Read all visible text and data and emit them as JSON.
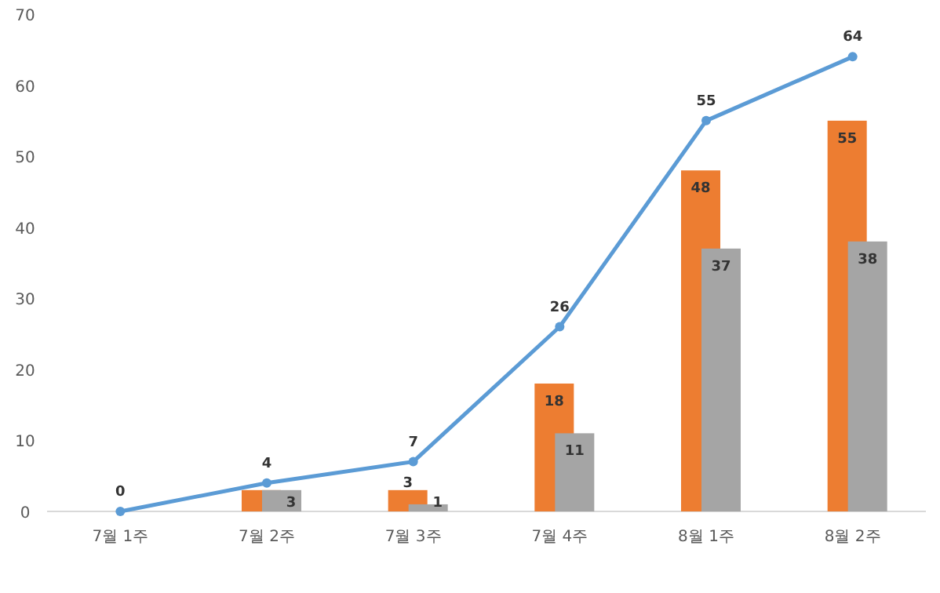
{
  "chart_data": {
    "type": "bar",
    "categories": [
      "7월 1주",
      "7월 2주",
      "7월 3주",
      "7월 4주",
      "8월 1주",
      "8월 2주"
    ],
    "series": [
      {
        "color": "#ed7d31",
        "values": [
          null,
          3,
          3,
          18,
          48,
          55
        ],
        "value_labels": [
          null,
          null,
          "3",
          "18",
          "48",
          "55"
        ]
      },
      {
        "color": "#a5a5a5",
        "values": [
          null,
          3,
          1,
          11,
          37,
          38
        ],
        "value_labels": [
          null,
          "3",
          "1",
          "11",
          "37",
          "38"
        ]
      },
      {
        "type": "line",
        "color": "#5b9bd5",
        "marker": "circle",
        "values": [
          0,
          4,
          7,
          26,
          55,
          64
        ],
        "value_labels": [
          "0",
          "4",
          "7",
          "26",
          "55",
          "64"
        ]
      }
    ],
    "ylim": [
      0,
      70
    ],
    "yticks": [
      0,
      10,
      20,
      30,
      40,
      50,
      60,
      70
    ],
    "grid": false
  }
}
